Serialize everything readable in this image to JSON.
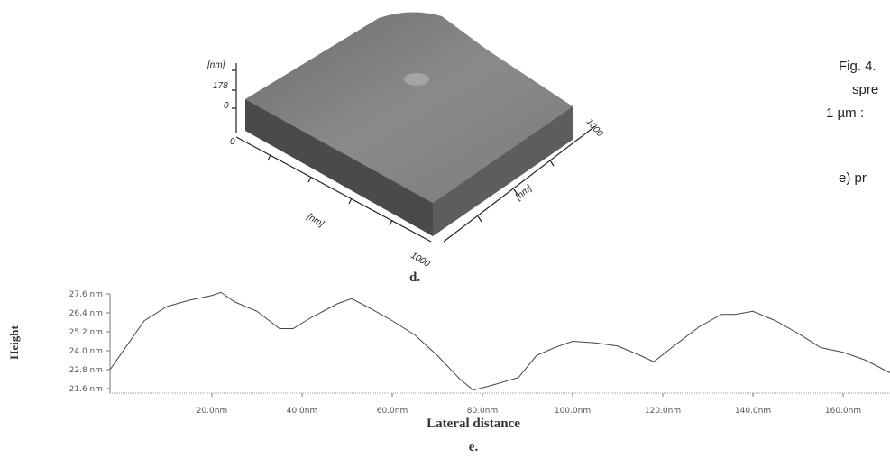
{
  "figure_d": {
    "label": "d.",
    "z_unit": "[nm]",
    "z_max": "178",
    "z_min": "0",
    "origin": "0",
    "x_unit": "[nm]",
    "x_max": "1000",
    "y_unit": "[nm]",
    "y_max": "1000"
  },
  "caption": {
    "line1": "Fig. 4.",
    "line2": "spre",
    "line3": "1 µm :",
    "line4": "e) pr"
  },
  "chart_data": {
    "type": "line",
    "label": "e.",
    "y_label": "Height",
    "x_label": "Lateral distance",
    "xlim": [
      -2.6,
      170.4
    ],
    "ylim": [
      21.6,
      27.6
    ],
    "xticks": [
      {
        "value": 20,
        "label": "20.0nm"
      },
      {
        "value": 40,
        "label": "40.0nm"
      },
      {
        "value": 60,
        "label": "60.0nm"
      },
      {
        "value": 80,
        "label": "80.0nm"
      },
      {
        "value": 100,
        "label": "100.0nm"
      },
      {
        "value": 120,
        "label": "120.0nm"
      },
      {
        "value": 140,
        "label": "140.0nm"
      },
      {
        "value": 160,
        "label": "160.0nm"
      }
    ],
    "yticks": [
      {
        "value": 21.6,
        "label": "21.6 nm"
      },
      {
        "value": 22.8,
        "label": "22.8 nm"
      },
      {
        "value": 24.0,
        "label": "24.0 nm"
      },
      {
        "value": 25.2,
        "label": "25.2 nm"
      },
      {
        "value": 26.4,
        "label": "26.4 nm"
      },
      {
        "value": 27.6,
        "label": "27.6 nm"
      }
    ],
    "x": [
      -2.6,
      5,
      10,
      15,
      20,
      22,
      25,
      30,
      35,
      38,
      42,
      48,
      51,
      55,
      60,
      65,
      70,
      75,
      78,
      82,
      88,
      92,
      96,
      100,
      105,
      110,
      115,
      118,
      122,
      128,
      133,
      136,
      140,
      145,
      150,
      155,
      160,
      165,
      170.4
    ],
    "series": [
      {
        "color": "#444444",
        "values": [
          22.8,
          25.9,
          26.8,
          27.2,
          27.5,
          27.7,
          27.1,
          26.5,
          25.4,
          25.4,
          26.1,
          27.0,
          27.3,
          26.7,
          25.9,
          25.0,
          23.7,
          22.2,
          21.5,
          21.8,
          22.3,
          23.7,
          24.2,
          24.6,
          24.5,
          24.3,
          23.7,
          23.3,
          24.2,
          25.5,
          26.3,
          26.3,
          26.5,
          25.9,
          25.1,
          24.2,
          23.9,
          23.4,
          22.6
        ]
      }
    ]
  }
}
